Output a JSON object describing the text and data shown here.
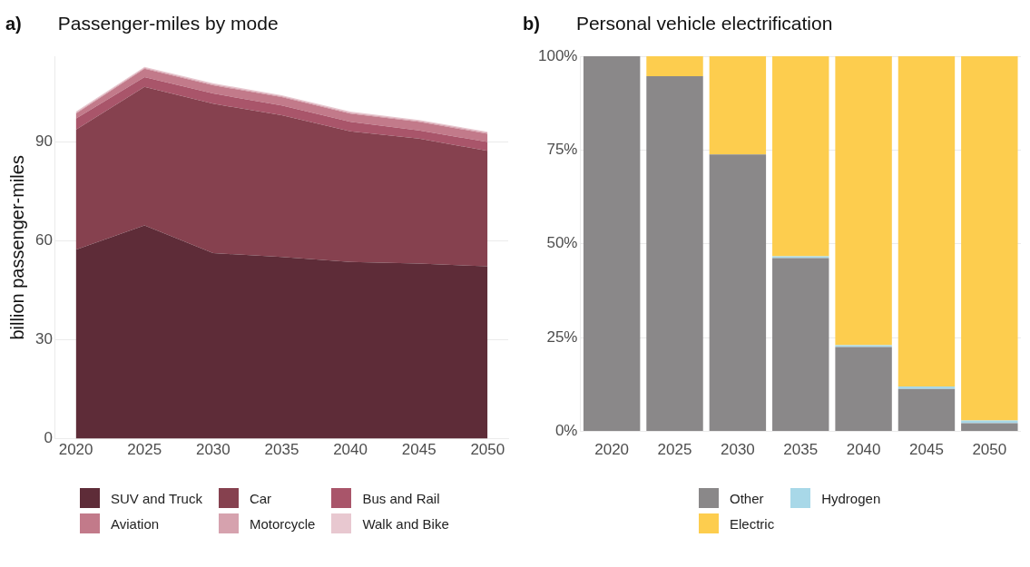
{
  "chart_data": [
    {
      "type": "area",
      "title": "Passenger-miles by mode",
      "ylabel": "billion passenger-miles",
      "annotations": [
        "a)"
      ],
      "x": [
        2020,
        2025,
        2030,
        2035,
        2040,
        2045,
        2050
      ],
      "xlim": [
        2018.5,
        2051.5
      ],
      "xticks": [
        2020,
        2025,
        2030,
        2035,
        2040,
        2045,
        2050
      ],
      "ylim": [
        0,
        116
      ],
      "yticks": [
        0,
        30,
        60,
        90
      ],
      "stacked": true,
      "grid": "y",
      "legend": "bottom",
      "series": [
        {
          "name": "SUV and Truck",
          "color": "#5e2c38",
          "values": [
            57.3,
            64.7,
            56.3,
            55.1,
            53.6,
            53.1,
            52.3
          ]
        },
        {
          "name": "Car",
          "color": "#86414f",
          "values": [
            36.4,
            42.0,
            45.3,
            43.0,
            39.6,
            37.9,
            35.0
          ]
        },
        {
          "name": "Bus and Rail",
          "color": "#a9556a",
          "values": [
            3.4,
            3.0,
            3.1,
            3.0,
            2.9,
            2.5,
            2.7
          ]
        },
        {
          "name": "Aviation",
          "color": "#c27a8a",
          "values": [
            1.5,
            2.5,
            2.5,
            2.5,
            2.5,
            2.6,
            2.5
          ]
        },
        {
          "name": "Motorcycle",
          "color": "#d6a2ae",
          "values": [
            0.3,
            0.3,
            0.3,
            0.3,
            0.3,
            0.3,
            0.3
          ]
        },
        {
          "name": "Walk and Bike",
          "color": "#e8c8d0",
          "values": [
            0.3,
            0.3,
            0.3,
            0.3,
            0.3,
            0.3,
            0.3
          ]
        }
      ]
    },
    {
      "type": "bar",
      "title": "Personal vehicle electrification",
      "annotations": [
        "b)"
      ],
      "categories": [
        "2020",
        "2025",
        "2030",
        "2035",
        "2040",
        "2045",
        "2050"
      ],
      "ylim": [
        0,
        100
      ],
      "yticks": [
        {
          "value": 0,
          "label": "0%"
        },
        {
          "value": 25,
          "label": "25%"
        },
        {
          "value": 50,
          "label": "50%"
        },
        {
          "value": 75,
          "label": "75%"
        },
        {
          "value": 100,
          "label": "100%"
        }
      ],
      "stacked": true,
      "grid": "y",
      "legend": "bottom",
      "series": [
        {
          "name": "Other",
          "color": "#8a8889",
          "values": [
            100,
            94.7,
            73.8,
            46.2,
            22.5,
            11.3,
            2.2
          ]
        },
        {
          "name": "Hydrogen",
          "color": "#a8d8e8",
          "values": [
            0,
            0,
            0,
            0.5,
            0.5,
            0.7,
            0.7
          ]
        },
        {
          "name": "Electric",
          "color": "#fdcd4e",
          "values": [
            0,
            5.3,
            26.2,
            53.3,
            77.0,
            88.0,
            97.1
          ]
        }
      ]
    }
  ]
}
